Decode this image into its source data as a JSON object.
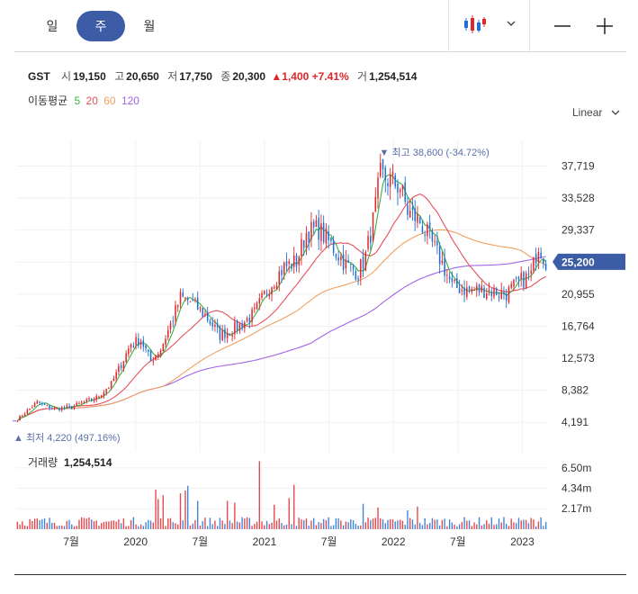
{
  "tabs": [
    {
      "label": "일",
      "active": false
    },
    {
      "label": "주",
      "active": true
    },
    {
      "label": "월",
      "active": false
    }
  ],
  "tools": {
    "chart_type_icon": "candlestick-icon",
    "dropdown_icon": "chevron-down-icon",
    "zoom_out_icon": "minus-icon",
    "zoom_in_icon": "plus-icon"
  },
  "stock": {
    "name": "GST",
    "open_label": "시",
    "open": "19,150",
    "high_label": "고",
    "high": "20,650",
    "low_label": "저",
    "low": "17,750",
    "close_label": "종",
    "close": "20,300",
    "change": "▲1,400",
    "change_pct": "+7.41%",
    "volume_label": "거",
    "volume": "1,254,514"
  },
  "ma": {
    "label": "이동평균",
    "periods": [
      {
        "label": "5",
        "color": "#3cb043"
      },
      {
        "label": "20",
        "color": "#e8505b"
      },
      {
        "label": "60",
        "color": "#f0a060"
      },
      {
        "label": "120",
        "color": "#a264e8"
      }
    ]
  },
  "scale": {
    "label": "Linear"
  },
  "colors": {
    "up": "#e0262b",
    "down": "#1f6fd4",
    "accent": "#3d5ca6",
    "marker": "#5c6fa8"
  },
  "chart_data": {
    "type": "candlestick",
    "x_tick_labels": [
      "7월",
      "2020",
      "7월",
      "2021",
      "7월",
      "2022",
      "7월",
      "2023"
    ],
    "x_ticks_date": [
      "2019-07",
      "2020-01",
      "2020-07",
      "2021-01",
      "2021-07",
      "2022-01",
      "2022-07",
      "2023-01"
    ],
    "price_axis": {
      "ticks": [
        "37,719",
        "33,528",
        "29,337",
        "25,146",
        "20,955",
        "16,764",
        "12,573",
        "8,382",
        "4,191"
      ],
      "ylim": [
        2800,
        41200
      ]
    },
    "current_price_label": "25,200",
    "current_price": 25200,
    "max_marker": {
      "text": "▼ 최고 38,600 (-34.72%)",
      "value": 38600,
      "date": "2021-12"
    },
    "min_marker": {
      "text": "▲ 최저 4,220 (497.16%)",
      "value": 4220,
      "date": "2019-02"
    },
    "weeks": 215,
    "price_anchors": [
      [
        0,
        4600
      ],
      [
        8,
        6800
      ],
      [
        15,
        5900
      ],
      [
        22,
        6200
      ],
      [
        32,
        7400
      ],
      [
        38,
        9200
      ],
      [
        42,
        11800
      ],
      [
        46,
        14500
      ],
      [
        50,
        15000
      ],
      [
        54,
        12200
      ],
      [
        58,
        13800
      ],
      [
        62,
        17000
      ],
      [
        66,
        20500
      ],
      [
        70,
        20000
      ],
      [
        76,
        18200
      ],
      [
        82,
        15600
      ],
      [
        90,
        16800
      ],
      [
        96,
        18500
      ],
      [
        102,
        22000
      ],
      [
        108,
        24500
      ],
      [
        113,
        25200
      ],
      [
        117,
        29000
      ],
      [
        122,
        29500
      ],
      [
        128,
        27000
      ],
      [
        133,
        24800
      ],
      [
        138,
        23800
      ],
      [
        141,
        26000
      ],
      [
        144,
        30500
      ],
      [
        147,
        36500
      ],
      [
        150,
        36000
      ],
      [
        155,
        35000
      ],
      [
        158,
        31800
      ],
      [
        163,
        30500
      ],
      [
        168,
        27500
      ],
      [
        172,
        25000
      ],
      [
        176,
        22000
      ],
      [
        182,
        21500
      ],
      [
        190,
        21500
      ],
      [
        198,
        21000
      ],
      [
        203,
        22500
      ],
      [
        208,
        23500
      ],
      [
        211,
        27500
      ],
      [
        214,
        25200
      ]
    ],
    "volume_panel": {
      "title": "거래량",
      "value": "1,254,514",
      "ticks": [
        "6.50m",
        "4.34m",
        "2.17m"
      ],
      "ymax": 8200000
    },
    "volume_spikes": [
      [
        56,
        4200000
      ],
      [
        57,
        3200000
      ],
      [
        59,
        3600000
      ],
      [
        66,
        3800000
      ],
      [
        68,
        4100000
      ],
      [
        69,
        4600000
      ],
      [
        73,
        3000000
      ],
      [
        85,
        3000000
      ],
      [
        88,
        2800000
      ],
      [
        98,
        7200000
      ],
      [
        104,
        2600000
      ],
      [
        110,
        3300000
      ],
      [
        112,
        4700000
      ],
      [
        140,
        2700000
      ],
      [
        146,
        2300000
      ],
      [
        158,
        2000000
      ],
      [
        162,
        2400000
      ],
      [
        212,
        1254514
      ]
    ]
  }
}
